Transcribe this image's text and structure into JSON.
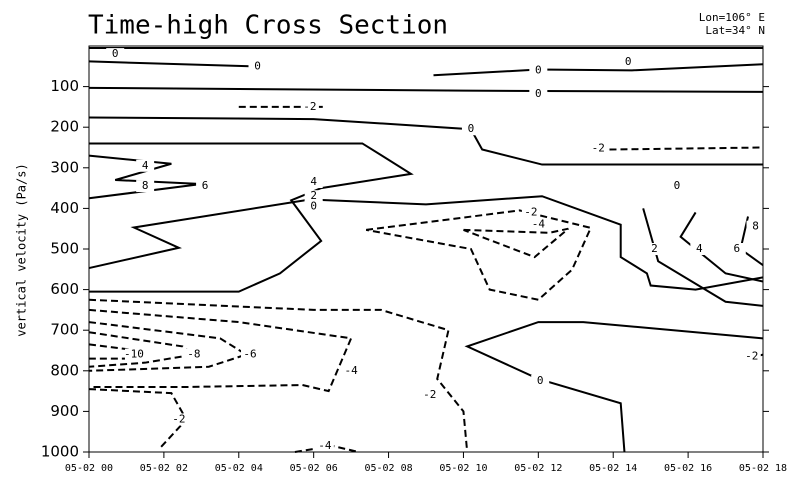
{
  "chart_data": {
    "type": "contour",
    "title": "Time-high Cross Section",
    "annotations": [
      "Lon=106° E",
      "Lat=34° N"
    ],
    "y_label": "vertical velocity (Pa/s)",
    "xlim": [
      0,
      18
    ],
    "xticks": [
      {
        "value": 0,
        "label": "05-02 00"
      },
      {
        "value": 2,
        "label": "05-02 02"
      },
      {
        "value": 4,
        "label": "05-02 04"
      },
      {
        "value": 6,
        "label": "05-02 06"
      },
      {
        "value": 8,
        "label": "05-02 08"
      },
      {
        "value": 10,
        "label": "05-02 10"
      },
      {
        "value": 12,
        "label": "05-02 12"
      },
      {
        "value": 14,
        "label": "05-02 14"
      },
      {
        "value": 16,
        "label": "05-02 16"
      },
      {
        "value": 18,
        "label": "05-02 18"
      }
    ],
    "ylim": [
      1000,
      0
    ],
    "yticks": [
      100,
      200,
      300,
      400,
      500,
      600,
      700,
      800,
      900,
      1000
    ],
    "negative_dashed": true,
    "color": "#000000",
    "contours": [
      {
        "level": 0,
        "x": [
          0,
          18
        ],
        "y": [
          5,
          5
        ]
      },
      {
        "level": 0,
        "x": [
          0,
          4.3
        ],
        "y": [
          38,
          50
        ]
      },
      {
        "level": 0,
        "x": [
          9.2,
          12,
          14.5,
          18
        ],
        "y": [
          72,
          58,
          60,
          45
        ]
      },
      {
        "level": 0,
        "x": [
          0,
          10,
          18
        ],
        "y": [
          103,
          110,
          113
        ]
      },
      {
        "level": 0,
        "x": [
          0,
          6,
          10.2,
          10.5,
          12.1,
          18
        ],
        "y": [
          176,
          180,
          205,
          255,
          292,
          292
        ]
      },
      {
        "level": 2,
        "x": [
          0,
          7.3,
          8.6,
          6.2,
          5.4,
          6.2,
          5.1,
          4,
          0
        ],
        "y": [
          240,
          240,
          315,
          350,
          380,
          480,
          560,
          605,
          605
        ]
      },
      {
        "level": 4,
        "x": [
          0,
          2.2,
          0.7,
          3,
          0
        ],
        "y": [
          270,
          290,
          330,
          340,
          375
        ]
      },
      {
        "level": 0,
        "x": [
          0,
          2.4,
          1.2,
          5.9,
          9,
          12.1,
          14.2,
          14.2,
          14.9,
          15,
          16.2,
          18
        ],
        "y": [
          547,
          497,
          447,
          378,
          390,
          370,
          440,
          520,
          560,
          590,
          600,
          570
        ]
      },
      {
        "level": 0,
        "x": [
          18,
          13.2,
          12,
          10.1,
          12,
          14.2,
          14.3
        ],
        "y": [
          720,
          680,
          680,
          740,
          820,
          880,
          1000
        ]
      },
      {
        "level": 2,
        "x": [
          14.8,
          15.2,
          17,
          18
        ],
        "y": [
          400,
          530,
          630,
          640
        ]
      },
      {
        "level": 4,
        "x": [
          16.2,
          15.8,
          17,
          18
        ],
        "y": [
          410,
          470,
          560,
          580
        ]
      },
      {
        "level": 6,
        "x": [
          17.6,
          17.4,
          18
        ],
        "y": [
          420,
          500,
          540
        ]
      },
      {
        "level": -2,
        "x": [
          4,
          6.3
        ],
        "y": [
          150,
          150
        ]
      },
      {
        "level": -2,
        "x": [
          13.9,
          18
        ],
        "y": [
          255,
          250
        ]
      },
      {
        "level": -2,
        "x": [
          7.4,
          11.5,
          13.4,
          12.9,
          12,
          10.7,
          10.2,
          7.4
        ],
        "y": [
          453,
          405,
          448,
          551,
          625,
          600,
          500,
          453
        ]
      },
      {
        "level": -4,
        "x": [
          10,
          12.3,
          12.8,
          11.9,
          10
        ],
        "y": [
          453,
          460,
          450,
          520,
          453
        ]
      },
      {
        "level": -2,
        "x": [
          0,
          6,
          7.8,
          9.6,
          9.3,
          10,
          10.1
        ],
        "y": [
          625,
          650,
          650,
          700,
          820,
          900,
          1000
        ]
      },
      {
        "level": -4,
        "x": [
          0,
          4,
          7,
          6.4,
          5.7,
          2.5,
          0
        ],
        "y": [
          650,
          680,
          720,
          850,
          835,
          840,
          840
        ]
      },
      {
        "level": -4,
        "x": [
          5.5,
          6.5,
          7.2
        ],
        "y": [
          1000,
          985,
          1000
        ]
      },
      {
        "level": -6,
        "x": [
          0,
          3.5,
          4.2,
          3.2,
          0
        ],
        "y": [
          680,
          720,
          760,
          790,
          800
        ]
      },
      {
        "level": -8,
        "x": [
          0,
          2.5,
          2.8,
          1.5,
          0
        ],
        "y": [
          705,
          740,
          760,
          780,
          790
        ]
      },
      {
        "level": -10,
        "x": [
          0,
          1.3,
          1.3,
          0
        ],
        "y": [
          735,
          750,
          770,
          770
        ]
      },
      {
        "level": -2,
        "x": [
          0,
          2.2,
          2.6,
          1.9
        ],
        "y": [
          845,
          855,
          920,
          990
        ]
      },
      {
        "level": -2,
        "x": [
          17.6,
          18
        ],
        "y": [
          770,
          760
        ]
      }
    ],
    "labels": [
      {
        "value": 0,
        "x": 0.7,
        "y": 20
      },
      {
        "value": 0,
        "x": 4.5,
        "y": 50
      },
      {
        "value": 0,
        "x": 12,
        "y": 60
      },
      {
        "value": 0,
        "x": 14.4,
        "y": 40
      },
      {
        "value": 0,
        "x": 12,
        "y": 118
      },
      {
        "value": 0,
        "x": 10.2,
        "y": 205
      },
      {
        "value": 4,
        "x": 1.5,
        "y": 295
      },
      {
        "value": 8,
        "x": 1.5,
        "y": 345
      },
      {
        "value": 6,
        "x": 3.1,
        "y": 345
      },
      {
        "value": 4,
        "x": 6,
        "y": 335
      },
      {
        "value": 2,
        "x": 6,
        "y": 370
      },
      {
        "value": 0,
        "x": 6,
        "y": 395
      },
      {
        "value": 0,
        "x": 15.7,
        "y": 345
      },
      {
        "value": -2,
        "x": 5.9,
        "y": 150
      },
      {
        "value": -2,
        "x": 13.6,
        "y": 252
      },
      {
        "value": -2,
        "x": 11.8,
        "y": 410
      },
      {
        "value": -4,
        "x": 12,
        "y": 440
      },
      {
        "value": 2,
        "x": 15.1,
        "y": 500
      },
      {
        "value": 4,
        "x": 16.3,
        "y": 500
      },
      {
        "value": 6,
        "x": 17.3,
        "y": 500
      },
      {
        "value": 8,
        "x": 17.8,
        "y": 445
      },
      {
        "value": 0,
        "x": 12.05,
        "y": 825
      },
      {
        "value": -2,
        "x": 9.1,
        "y": 860
      },
      {
        "value": -4,
        "x": 7,
        "y": 800
      },
      {
        "value": -6,
        "x": 4.3,
        "y": 760
      },
      {
        "value": -8,
        "x": 2.8,
        "y": 760
      },
      {
        "value": -10,
        "x": 1.2,
        "y": 760
      },
      {
        "value": -2,
        "x": 2.4,
        "y": 920
      },
      {
        "value": -4,
        "x": 6.3,
        "y": 985
      },
      {
        "value": -2,
        "x": 17.7,
        "y": 765
      }
    ]
  }
}
